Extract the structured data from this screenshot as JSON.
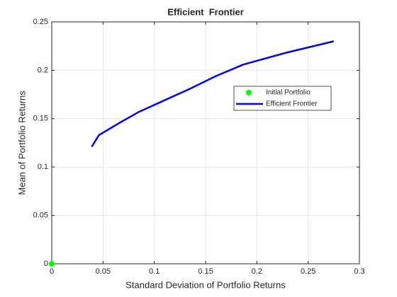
{
  "chart_data": {
    "type": "line",
    "title": "Efficient  Frontier",
    "x_label": "Standard Deviation of Portfolio Returns",
    "y_label": "Mean of Portfolio Returns",
    "xlim": [
      0,
      0.3
    ],
    "ylim": [
      0,
      0.25
    ],
    "xticks": [
      0,
      0.05,
      0.1,
      0.15,
      0.2,
      0.25,
      0.3
    ],
    "yticks": [
      0,
      0.05,
      0.1,
      0.15,
      0.2,
      0.25
    ],
    "grid": true,
    "series": [
      {
        "name": "Initial Portfolio",
        "type": "scatter",
        "color": "#00ff00",
        "x": [
          0
        ],
        "values": [
          0
        ]
      },
      {
        "name": "Efficient Frontier",
        "type": "line",
        "color": "#0000ff",
        "x": [
          0.039,
          0.046,
          0.065,
          0.085,
          0.11,
          0.135,
          0.16,
          0.187,
          0.228,
          0.275
        ],
        "values": [
          0.121,
          0.133,
          0.145,
          0.157,
          0.169,
          0.181,
          0.194,
          0.206,
          0.218,
          0.23
        ]
      }
    ]
  }
}
